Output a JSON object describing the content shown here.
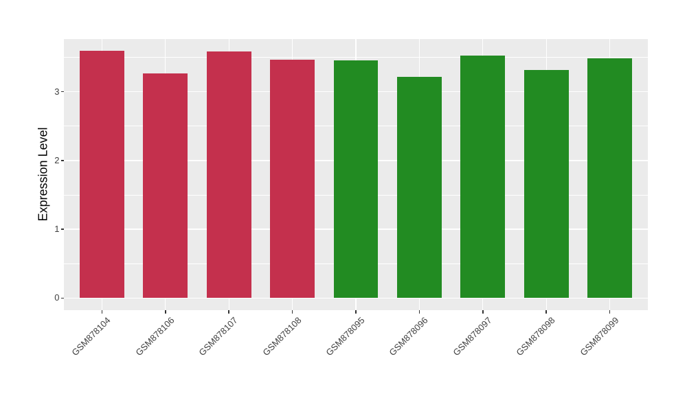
{
  "chart_data": {
    "type": "bar",
    "title": "",
    "xlabel": "",
    "ylabel": "Expression Level",
    "categories": [
      "GSM878104",
      "GSM878106",
      "GSM878107",
      "GSM878108",
      "GSM878095",
      "GSM878096",
      "GSM878097",
      "GSM878098",
      "GSM878099"
    ],
    "values": [
      3.59,
      3.26,
      3.58,
      3.46,
      3.45,
      3.21,
      3.52,
      3.31,
      3.48
    ],
    "bar_colors": [
      "#C4304D",
      "#C4304D",
      "#C4304D",
      "#C4304D",
      "#228B22",
      "#228B22",
      "#228B22",
      "#228B22",
      "#228B22"
    ],
    "y_ticks": [
      0,
      1,
      2,
      3
    ],
    "y_tick_labels": [
      "0",
      "1",
      "2",
      "3"
    ],
    "ylim": [
      0,
      3.77
    ],
    "legend": "none",
    "grid": "white major+minor horizontal, white major vertical, shown on gray panel",
    "panel_background": "#EBEBEB",
    "colors": {
      "group_red": "#C4304D",
      "group_green": "#228B22",
      "axis_text": "#404040",
      "tick_mark": "#333333"
    }
  }
}
